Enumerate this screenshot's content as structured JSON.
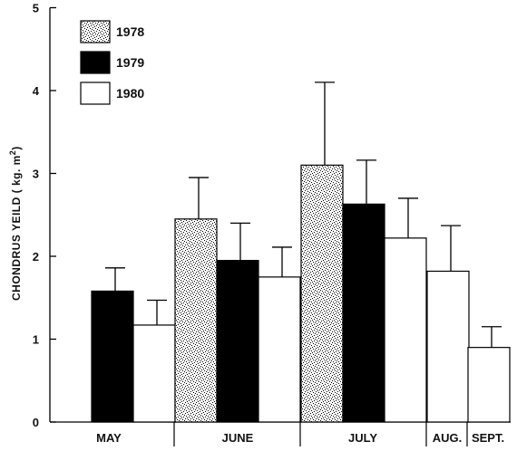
{
  "chart_data": {
    "type": "bar",
    "title": "",
    "xlabel": "",
    "ylabel": "CHONDRUS YEILD ( kg. m",
    "ylabel_sup": "2",
    "ylabel_close": ")",
    "ylim": [
      0,
      5
    ],
    "yticks": [
      "0",
      "1",
      "2",
      "3",
      "4",
      "5"
    ],
    "grid": false,
    "legend_position": "top-left",
    "categories": [
      "MAY",
      "JUNE",
      "JULY",
      "AUG.",
      "SEPT."
    ],
    "series": [
      {
        "name": "1978",
        "fill": "stipple",
        "color": "#000000",
        "values": [
          null,
          2.45,
          3.1,
          null,
          null
        ],
        "errors": [
          null,
          0.5,
          1.0,
          null,
          null
        ]
      },
      {
        "name": "1979",
        "fill": "solid",
        "color": "#000000",
        "values": [
          1.58,
          1.95,
          2.63,
          null,
          null
        ],
        "errors": [
          0.28,
          0.45,
          0.53,
          null,
          null
        ]
      },
      {
        "name": "1980",
        "fill": "open",
        "color": "#ffffff",
        "values": [
          1.17,
          1.75,
          2.22,
          1.82,
          0.9
        ],
        "errors": [
          0.3,
          0.36,
          0.48,
          0.55,
          0.25
        ]
      }
    ]
  }
}
